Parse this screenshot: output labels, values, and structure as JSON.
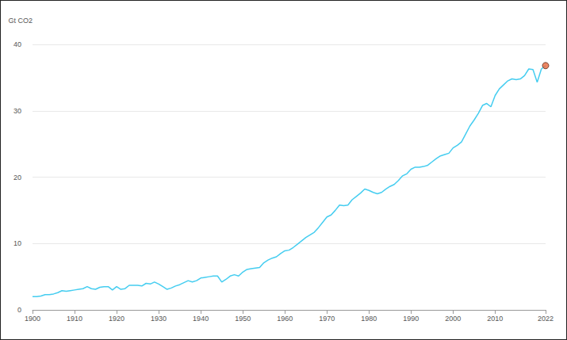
{
  "chart_data": {
    "type": "line",
    "y_label": "Gt CO2",
    "x": [
      1900,
      1901,
      1902,
      1903,
      1904,
      1905,
      1906,
      1907,
      1908,
      1909,
      1910,
      1911,
      1912,
      1913,
      1914,
      1915,
      1916,
      1917,
      1918,
      1919,
      1920,
      1921,
      1922,
      1923,
      1924,
      1925,
      1926,
      1927,
      1928,
      1929,
      1930,
      1931,
      1932,
      1933,
      1934,
      1935,
      1936,
      1937,
      1938,
      1939,
      1940,
      1941,
      1942,
      1943,
      1944,
      1945,
      1946,
      1947,
      1948,
      1949,
      1950,
      1951,
      1952,
      1953,
      1954,
      1955,
      1956,
      1957,
      1958,
      1959,
      1960,
      1961,
      1962,
      1963,
      1964,
      1965,
      1966,
      1967,
      1968,
      1969,
      1970,
      1971,
      1972,
      1973,
      1974,
      1975,
      1976,
      1977,
      1978,
      1979,
      1980,
      1981,
      1982,
      1983,
      1984,
      1985,
      1986,
      1987,
      1988,
      1989,
      1990,
      1991,
      1992,
      1993,
      1994,
      1995,
      1996,
      1997,
      1998,
      1999,
      2000,
      2001,
      2002,
      2003,
      2004,
      2005,
      2006,
      2007,
      2008,
      2009,
      2010,
      2011,
      2012,
      2013,
      2014,
      2015,
      2016,
      2017,
      2018,
      2019,
      2020,
      2021,
      2022
    ],
    "values": [
      2.0,
      2.0,
      2.1,
      2.3,
      2.3,
      2.4,
      2.6,
      2.9,
      2.8,
      2.9,
      3.0,
      3.1,
      3.2,
      3.5,
      3.2,
      3.1,
      3.4,
      3.5,
      3.5,
      3.0,
      3.5,
      3.1,
      3.2,
      3.7,
      3.7,
      3.7,
      3.6,
      4.0,
      3.9,
      4.2,
      3.9,
      3.5,
      3.1,
      3.3,
      3.6,
      3.8,
      4.1,
      4.4,
      4.2,
      4.4,
      4.8,
      4.9,
      5.0,
      5.1,
      5.1,
      4.2,
      4.6,
      5.1,
      5.3,
      5.1,
      5.7,
      6.1,
      6.2,
      6.3,
      6.4,
      7.1,
      7.5,
      7.8,
      8.0,
      8.5,
      8.9,
      9.0,
      9.4,
      9.9,
      10.4,
      10.9,
      11.3,
      11.7,
      12.4,
      13.2,
      14.0,
      14.3,
      15.0,
      15.8,
      15.7,
      15.8,
      16.6,
      17.1,
      17.6,
      18.2,
      18.0,
      17.7,
      17.5,
      17.7,
      18.2,
      18.6,
      18.9,
      19.5,
      20.2,
      20.5,
      21.2,
      21.5,
      21.5,
      21.6,
      21.8,
      22.3,
      22.8,
      23.2,
      23.4,
      23.6,
      24.4,
      24.8,
      25.3,
      26.5,
      27.7,
      28.6,
      29.6,
      30.8,
      31.1,
      30.6,
      32.3,
      33.3,
      33.9,
      34.5,
      34.8,
      34.7,
      34.8,
      35.3,
      36.3,
      36.2,
      34.3,
      36.3,
      36.8
    ],
    "color": "#45cdf0",
    "highlight": {
      "x": 2022,
      "color": "#e8683c"
    },
    "xlim": [
      1900,
      2022
    ],
    "xticks": [
      1900,
      1910,
      1920,
      1930,
      1940,
      1950,
      1960,
      1970,
      1980,
      1990,
      2000,
      2010,
      2022
    ],
    "ylim": [
      0,
      40
    ],
    "yticks": [
      0,
      10,
      20,
      30,
      40
    ],
    "grid": true
  }
}
